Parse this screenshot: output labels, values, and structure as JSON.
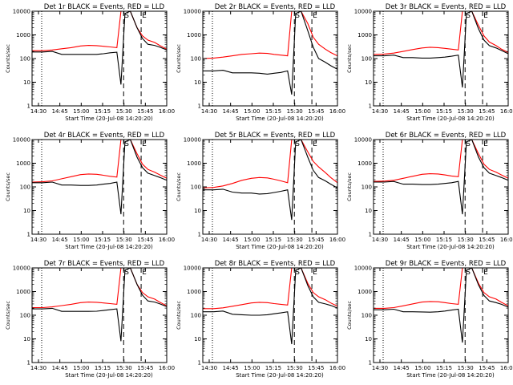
{
  "figure": {
    "xlabel": "Start Time (20-Jul-08 14:20:20)",
    "ylabel": "Counts/sec",
    "x_tick_labels": [
      "14:30",
      "14:45",
      "15:00",
      "15:15",
      "15:30",
      "15:45",
      "16:00"
    ],
    "y_tick_labels": [
      "1",
      "10",
      "100",
      "1000",
      "10000"
    ],
    "markers": {
      "start": "S",
      "end": "E"
    },
    "colors": {
      "events": "#000000",
      "lld": "#ff0000",
      "axes": "#000000"
    }
  },
  "chart_data": [
    {
      "type": "line",
      "title": "Det 1r BLACK = Events, RED = LLD",
      "ylim": [
        1,
        10000
      ],
      "yscale": "log",
      "x": [
        0,
        8,
        15,
        22,
        29,
        36,
        42,
        48,
        53,
        58,
        63,
        66,
        69,
        73,
        78,
        82,
        86,
        91,
        95,
        100
      ],
      "series": [
        {
          "name": "LLD",
          "color": "#ff0000",
          "values": [
            215,
            215,
            230,
            260,
            290,
            340,
            360,
            350,
            330,
            310,
            290,
            10000,
            10000,
            10000,
            2000,
            900,
            600,
            480,
            350,
            250
          ]
        },
        {
          "name": "Events",
          "color": "#000000",
          "values": [
            190,
            190,
            200,
            150,
            150,
            150,
            150,
            150,
            160,
            175,
            185,
            8,
            8000,
            10000,
            2000,
            700,
            400,
            360,
            300,
            230
          ]
        }
      ]
    },
    {
      "type": "line",
      "title": "Det 2r BLACK = Events, RED = LLD",
      "ylim": [
        1,
        10000
      ],
      "yscale": "log",
      "x": [
        0,
        8,
        15,
        22,
        29,
        36,
        42,
        48,
        53,
        58,
        63,
        66,
        69,
        73,
        78,
        82,
        86,
        91,
        95,
        100
      ],
      "series": [
        {
          "name": "LLD",
          "color": "#ff0000",
          "values": [
            100,
            105,
            115,
            130,
            150,
            160,
            170,
            165,
            150,
            140,
            130,
            10000,
            10000,
            10000,
            3000,
            800,
            400,
            250,
            180,
            130
          ]
        },
        {
          "name": "Events",
          "color": "#000000",
          "values": [
            30,
            30,
            32,
            25,
            25,
            25,
            24,
            22,
            24,
            26,
            30,
            3,
            8000,
            10000,
            1500,
            300,
            100,
            70,
            50,
            35
          ]
        }
      ]
    },
    {
      "type": "line",
      "title": "Det 3r BLACK = Events, RED = LLD",
      "ylim": [
        1,
        10000
      ],
      "yscale": "log",
      "x": [
        0,
        8,
        15,
        22,
        29,
        36,
        42,
        48,
        53,
        58,
        63,
        66,
        69,
        73,
        78,
        82,
        86,
        91,
        95,
        100
      ],
      "series": [
        {
          "name": "LLD",
          "color": "#ff0000",
          "values": [
            150,
            155,
            170,
            200,
            240,
            280,
            300,
            290,
            270,
            250,
            230,
            10000,
            10000,
            10000,
            2500,
            900,
            500,
            350,
            250,
            180
          ]
        },
        {
          "name": "Events",
          "color": "#000000",
          "values": [
            130,
            130,
            140,
            110,
            110,
            105,
            105,
            110,
            115,
            125,
            140,
            6,
            8000,
            10000,
            1800,
            600,
            350,
            280,
            220,
            160
          ]
        }
      ]
    },
    {
      "type": "line",
      "title": "Det 4r BLACK = Events, RED = LLD",
      "ylim": [
        1,
        10000
      ],
      "yscale": "log",
      "x": [
        0,
        8,
        15,
        22,
        29,
        36,
        42,
        48,
        53,
        58,
        63,
        66,
        69,
        73,
        78,
        82,
        86,
        91,
        95,
        100
      ],
      "series": [
        {
          "name": "LLD",
          "color": "#ff0000",
          "values": [
            160,
            165,
            180,
            220,
            270,
            330,
            350,
            340,
            310,
            280,
            260,
            10000,
            10000,
            10000,
            2500,
            900,
            550,
            420,
            320,
            230
          ]
        },
        {
          "name": "Events",
          "color": "#000000",
          "values": [
            150,
            150,
            160,
            120,
            120,
            115,
            115,
            120,
            130,
            140,
            160,
            7,
            8000,
            10000,
            1800,
            650,
            380,
            300,
            250,
            190
          ]
        }
      ]
    },
    {
      "type": "line",
      "title": "Det 5r BLACK = Events, RED = LLD",
      "ylim": [
        1,
        10000
      ],
      "yscale": "log",
      "x": [
        0,
        8,
        15,
        22,
        29,
        36,
        42,
        48,
        53,
        58,
        63,
        66,
        69,
        73,
        78,
        82,
        86,
        91,
        95,
        100
      ],
      "series": [
        {
          "name": "LLD",
          "color": "#ff0000",
          "values": [
            90,
            95,
            110,
            140,
            190,
            230,
            250,
            240,
            210,
            180,
            150,
            10000,
            10000,
            10000,
            3000,
            1200,
            700,
            400,
            250,
            150
          ]
        },
        {
          "name": "Events",
          "color": "#000000",
          "values": [
            75,
            75,
            80,
            60,
            55,
            55,
            50,
            52,
            58,
            65,
            75,
            4,
            8000,
            10000,
            1800,
            500,
            250,
            180,
            130,
            90
          ]
        }
      ]
    },
    {
      "type": "line",
      "title": "Det 6r BLACK = Events, RED = LLD",
      "ylim": [
        1,
        10000
      ],
      "yscale": "log",
      "x": [
        0,
        8,
        15,
        22,
        29,
        36,
        42,
        48,
        53,
        58,
        63,
        66,
        69,
        73,
        78,
        82,
        86,
        91,
        95,
        100
      ],
      "series": [
        {
          "name": "LLD",
          "color": "#ff0000",
          "values": [
            170,
            175,
            190,
            230,
            280,
            340,
            360,
            350,
            320,
            290,
            270,
            10000,
            10000,
            10000,
            2500,
            900,
            550,
            420,
            320,
            230
          ]
        },
        {
          "name": "Events",
          "color": "#000000",
          "values": [
            160,
            160,
            170,
            130,
            130,
            125,
            125,
            130,
            140,
            150,
            170,
            7,
            8000,
            10000,
            1800,
            650,
            380,
            300,
            250,
            190
          ]
        }
      ]
    },
    {
      "type": "line",
      "title": "Det 7r BLACK = Events, RED = LLD",
      "ylim": [
        1,
        10000
      ],
      "yscale": "log",
      "x": [
        0,
        8,
        15,
        22,
        29,
        36,
        42,
        48,
        53,
        58,
        63,
        66,
        69,
        73,
        78,
        82,
        86,
        91,
        95,
        100
      ],
      "series": [
        {
          "name": "LLD",
          "color": "#ff0000",
          "values": [
            210,
            210,
            225,
            255,
            290,
            340,
            360,
            350,
            330,
            310,
            290,
            10000,
            10000,
            10000,
            2000,
            900,
            600,
            480,
            350,
            250
          ]
        },
        {
          "name": "Events",
          "color": "#000000",
          "values": [
            185,
            185,
            195,
            145,
            145,
            145,
            145,
            148,
            158,
            172,
            185,
            8,
            8000,
            10000,
            2000,
            700,
            400,
            360,
            300,
            230
          ]
        }
      ]
    },
    {
      "type": "line",
      "title": "Det 8r BLACK = Events, RED = LLD",
      "ylim": [
        1,
        10000
      ],
      "yscale": "log",
      "x": [
        0,
        8,
        15,
        22,
        29,
        36,
        42,
        48,
        53,
        58,
        63,
        66,
        69,
        73,
        78,
        82,
        86,
        91,
        95,
        100
      ],
      "series": [
        {
          "name": "LLD",
          "color": "#ff0000",
          "values": [
            190,
            190,
            205,
            240,
            280,
            330,
            350,
            340,
            310,
            290,
            270,
            10000,
            10000,
            10000,
            2200,
            900,
            600,
            450,
            330,
            240
          ]
        },
        {
          "name": "Events",
          "color": "#000000",
          "values": [
            140,
            140,
            150,
            110,
            105,
            100,
            100,
            105,
            115,
            125,
            140,
            6,
            8000,
            10000,
            1800,
            600,
            350,
            300,
            260,
            200
          ]
        }
      ]
    },
    {
      "type": "line",
      "title": "Det 9r BLACK = Events, RED = LLD",
      "ylim": [
        1,
        10000
      ],
      "yscale": "log",
      "x": [
        0,
        8,
        15,
        22,
        29,
        36,
        42,
        48,
        53,
        58,
        63,
        66,
        69,
        73,
        78,
        82,
        86,
        91,
        95,
        100
      ],
      "series": [
        {
          "name": "LLD",
          "color": "#ff0000",
          "values": [
            195,
            195,
            210,
            250,
            300,
            360,
            380,
            370,
            340,
            310,
            290,
            10000,
            10000,
            10000,
            2200,
            900,
            600,
            480,
            350,
            250
          ]
        },
        {
          "name": "Events",
          "color": "#000000",
          "values": [
            170,
            170,
            180,
            140,
            140,
            138,
            135,
            140,
            150,
            165,
            180,
            7,
            8000,
            10000,
            1900,
            680,
            400,
            340,
            290,
            220
          ]
        }
      ]
    }
  ]
}
